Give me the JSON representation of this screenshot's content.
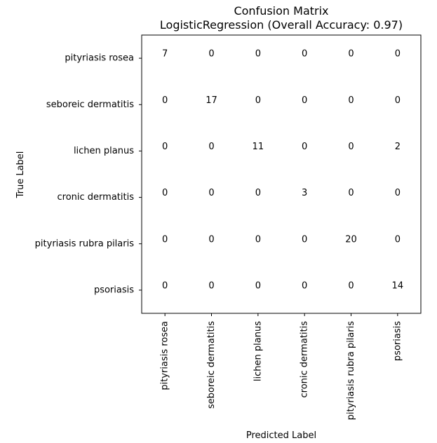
{
  "chart_data": {
    "type": "heatmap",
    "title": "Confusion Matrix",
    "subtitle": "LogisticRegression (Overall Accuracy: 0.97)",
    "xlabel": "Predicted Label",
    "ylabel": "True Label",
    "row_labels": [
      "pityriasis rosea",
      "seboreic dermatitis",
      "lichen planus",
      "cronic dermatitis",
      "pityriasis rubra pilaris",
      "psoriasis"
    ],
    "col_labels": [
      "pityriasis rosea",
      "seboreic dermatitis",
      "lichen planus",
      "cronic dermatitis",
      "pityriasis rubra pilaris",
      "psoriasis"
    ],
    "values": [
      [
        7,
        0,
        0,
        0,
        0,
        0
      ],
      [
        0,
        17,
        0,
        0,
        0,
        0
      ],
      [
        0,
        0,
        11,
        0,
        0,
        2
      ],
      [
        0,
        0,
        0,
        3,
        0,
        0
      ],
      [
        0,
        0,
        0,
        0,
        20,
        0
      ],
      [
        0,
        0,
        0,
        0,
        0,
        14
      ]
    ],
    "colorbar": false,
    "grid": false,
    "colors": {
      "background": "#ffffff",
      "cell": "#ffffff",
      "text": "#000000",
      "frame": "#000000"
    }
  }
}
